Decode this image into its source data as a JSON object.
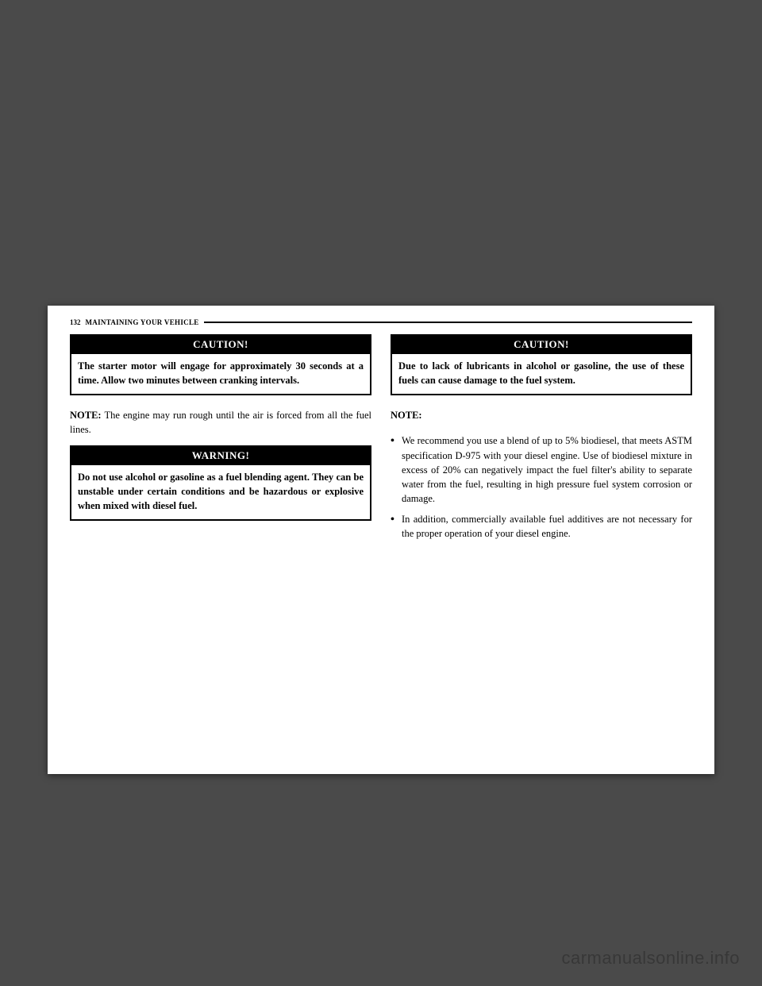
{
  "header": {
    "page_number": "132",
    "section": "MAINTAINING YOUR VEHICLE"
  },
  "left_column": {
    "caution_box": {
      "title": "CAUTION!",
      "body": "The starter motor will engage for approximately 30 seconds at a time. Allow two minutes between cranking intervals."
    },
    "note": {
      "label": "NOTE:",
      "text": "The engine may run rough until the air is forced from all the fuel lines."
    },
    "warning_box": {
      "title": "WARNING!",
      "body": "Do not use alcohol or gasoline as a fuel blending agent. They can be unstable under certain conditions and be hazardous or explosive when mixed with diesel fuel."
    }
  },
  "right_column": {
    "caution_box": {
      "title": "CAUTION!",
      "body": "Due to lack of lubricants in alcohol or gasoline, the use of these fuels can cause damage to the fuel system."
    },
    "note_label": "NOTE:",
    "bullets": [
      "We recommend you use a blend of up to 5% biodiesel, that meets ASTM specification D-975 with your diesel engine. Use of biodiesel mixture in excess of 20% can negatively impact the fuel filter's ability to separate water from the fuel, resulting in high pressure fuel system corrosion or damage.",
      "In addition, commercially available fuel additives are not necessary for the proper operation of your diesel engine."
    ]
  },
  "watermark": "carmanualsonline.info"
}
